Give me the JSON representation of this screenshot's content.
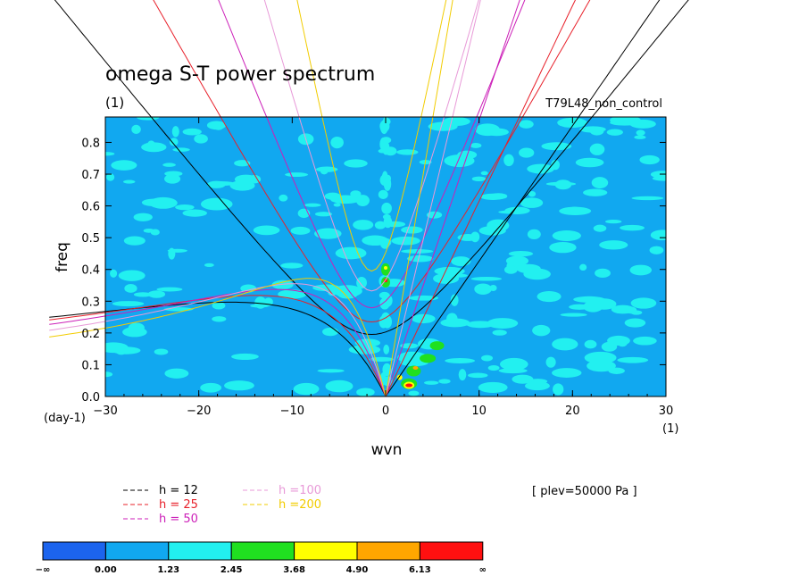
{
  "chart_data": {
    "type": "line",
    "title": "omega S-T power spectrum",
    "subtitle": "(1)",
    "run_label": "T79L48_non_control",
    "xlabel": "wvn",
    "ylabel": "freq",
    "x_unit": "(1)",
    "y_unit": "(day-1)",
    "xlim": [
      -30,
      30
    ],
    "ylim": [
      0,
      0.88
    ],
    "x_ticks": [
      -30,
      -20,
      -10,
      0,
      10,
      20,
      30
    ],
    "x_tick_labels": [
      "−30",
      "−20",
      "−10",
      "0",
      "10",
      "20",
      "30"
    ],
    "y_ticks": [
      0.0,
      0.1,
      0.2,
      0.3,
      0.4,
      0.5,
      0.6,
      0.7,
      0.8
    ],
    "y_tick_labels": [
      "0.0",
      "0.1",
      "0.2",
      "0.3",
      "0.4",
      "0.5",
      "0.6",
      "0.7",
      "0.8"
    ],
    "level_annotation": "[ plev=50000 Pa ]",
    "series": [
      {
        "name": "h = 12",
        "color": "#000000",
        "equivalent_depth_m": 12
      },
      {
        "name": "h = 25",
        "color": "#e8202a",
        "equivalent_depth_m": 25
      },
      {
        "name": "h = 50",
        "color": "#cc1fb8",
        "equivalent_depth_m": 50
      },
      {
        "name": "h =100",
        "color": "#e89ad8",
        "equivalent_depth_m": 100
      },
      {
        "name": "h =200",
        "color": "#f2cc00",
        "equivalent_depth_m": 200
      }
    ],
    "colorbar": {
      "colors": [
        "#1c64ee",
        "#11a8f0",
        "#22f0f0",
        "#20e020",
        "#ffff00",
        "#ffa600",
        "#ff1010"
      ],
      "labels": [
        "−∞",
        "0.00",
        "1.23",
        "2.45",
        "3.68",
        "4.90",
        "6.13",
        "∞"
      ]
    }
  }
}
